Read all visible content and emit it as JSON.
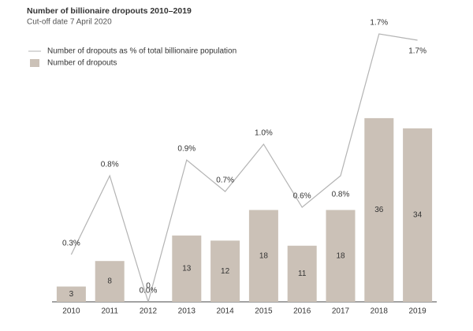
{
  "chart_data": {
    "type": "bar-line",
    "title": "Number of billionaire dropouts 2010–2019",
    "subtitle": "Cut-off date 7 April 2020",
    "categories": [
      "2010",
      "2011",
      "2012",
      "2013",
      "2014",
      "2015",
      "2016",
      "2017",
      "2018",
      "2019"
    ],
    "series": [
      {
        "name": "Number of dropouts as % of total billionaire population",
        "type": "line",
        "axis": "y2",
        "color": "#b3b3b3",
        "values": [
          0.3,
          0.8,
          0.0,
          0.9,
          0.7,
          1.0,
          0.6,
          0.8,
          1.7,
          1.66
        ],
        "value_labels": [
          "0.3%",
          "0.8%",
          "0.0%",
          "0.9%",
          "0.7%",
          "1.0%",
          "0.6%",
          "0.8%",
          "1.7%",
          "1.7%"
        ]
      },
      {
        "name": "Number of dropouts",
        "type": "bar",
        "color": "#cbc1b7",
        "values": [
          3,
          8,
          0,
          13,
          12,
          18,
          11,
          18,
          36,
          34
        ]
      }
    ],
    "ylim": [
      0,
      40
    ],
    "y2lim": [
      0,
      1.8
    ]
  }
}
